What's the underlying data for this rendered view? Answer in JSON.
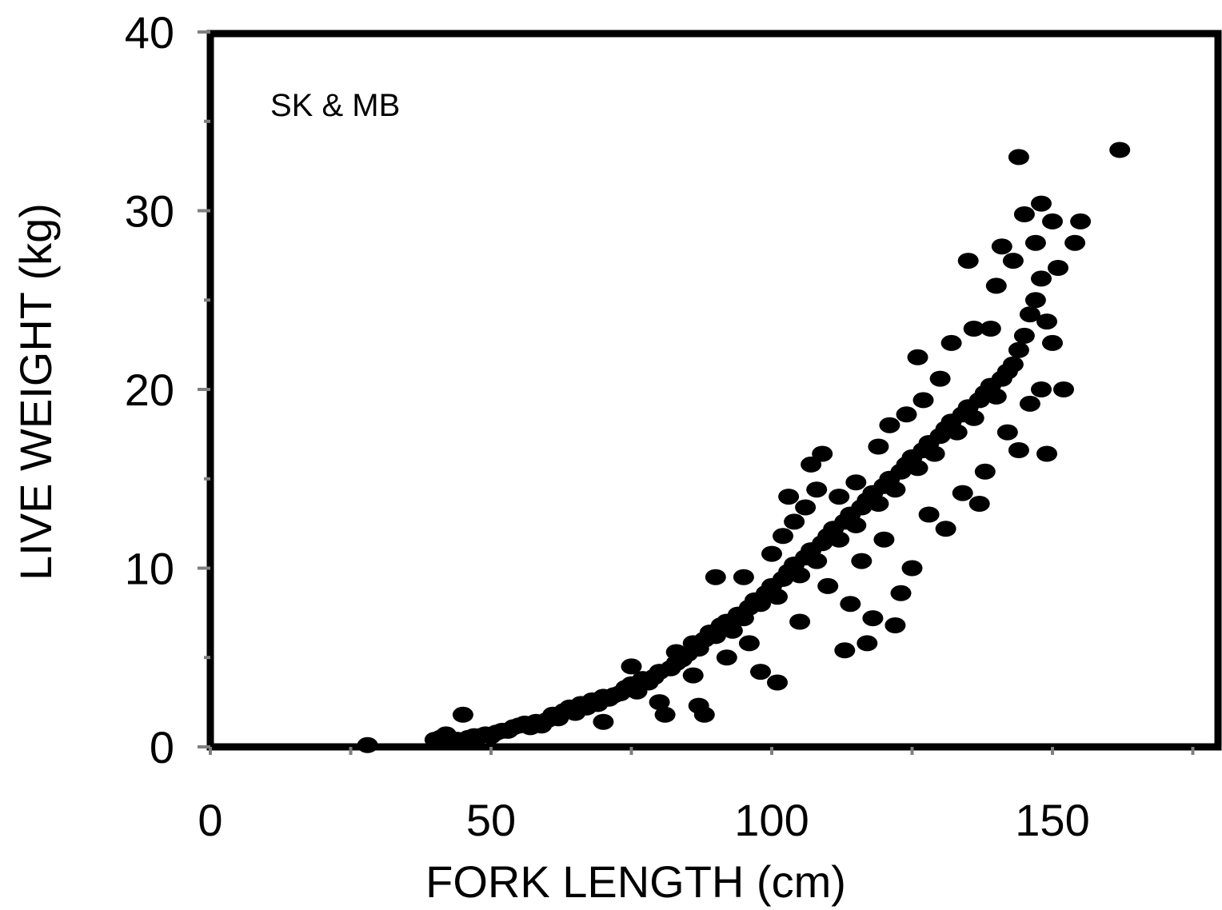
{
  "chart_data": {
    "type": "scatter",
    "title": "",
    "annotation": "SK & MB",
    "xlabel": "FORK LENGTH (cm)",
    "ylabel": "LIVE WEIGHT (kg)",
    "xlim": [
      0,
      180
    ],
    "ylim": [
      0,
      40
    ],
    "xticks": [
      0,
      50,
      100,
      150
    ],
    "xticks_minor": [
      25,
      75,
      125,
      175
    ],
    "yticks": [
      0,
      10,
      20,
      30,
      40
    ],
    "yticks_minor": [
      5,
      15,
      25,
      35
    ],
    "grid": false,
    "legend": "none",
    "marker_color": "#000000",
    "points": [
      [
        28,
        0.1
      ],
      [
        40,
        0.4
      ],
      [
        41,
        0.5
      ],
      [
        42,
        0.7
      ],
      [
        44,
        0.4
      ],
      [
        45,
        1.8
      ],
      [
        46,
        0.5
      ],
      [
        47,
        0.6
      ],
      [
        48,
        0.6
      ],
      [
        49,
        0.7
      ],
      [
        50,
        0.6
      ],
      [
        51,
        0.8
      ],
      [
        52,
        0.9
      ],
      [
        53,
        0.9
      ],
      [
        54,
        1.1
      ],
      [
        55,
        1.2
      ],
      [
        56,
        1.3
      ],
      [
        57,
        1.1
      ],
      [
        58,
        1.4
      ],
      [
        59,
        1.2
      ],
      [
        60,
        1.5
      ],
      [
        61,
        1.8
      ],
      [
        62,
        1.6
      ],
      [
        63,
        2.0
      ],
      [
        64,
        2.2
      ],
      [
        65,
        1.9
      ],
      [
        66,
        2.4
      ],
      [
        67,
        2.2
      ],
      [
        68,
        2.6
      ],
      [
        69,
        2.4
      ],
      [
        70,
        1.4
      ],
      [
        70,
        2.8
      ],
      [
        71,
        2.7
      ],
      [
        72,
        2.9
      ],
      [
        73,
        3.0
      ],
      [
        74,
        3.3
      ],
      [
        75,
        3.5
      ],
      [
        75,
        4.5
      ],
      [
        76,
        3.1
      ],
      [
        77,
        3.8
      ],
      [
        78,
        3.6
      ],
      [
        79,
        3.9
      ],
      [
        80,
        4.2
      ],
      [
        80,
        2.5
      ],
      [
        81,
        1.8
      ],
      [
        82,
        4.4
      ],
      [
        83,
        4.7
      ],
      [
        83,
        5.3
      ],
      [
        84,
        4.9
      ],
      [
        85,
        5.2
      ],
      [
        86,
        5.8
      ],
      [
        86,
        4.0
      ],
      [
        87,
        5.5
      ],
      [
        87,
        2.3
      ],
      [
        88,
        6.0
      ],
      [
        88,
        1.8
      ],
      [
        89,
        6.4
      ],
      [
        90,
        6.2
      ],
      [
        90,
        9.5
      ],
      [
        91,
        6.8
      ],
      [
        92,
        7.0
      ],
      [
        92,
        5.0
      ],
      [
        93,
        6.5
      ],
      [
        94,
        7.4
      ],
      [
        95,
        7.2
      ],
      [
        95,
        9.5
      ],
      [
        96,
        7.8
      ],
      [
        96,
        5.8
      ],
      [
        97,
        8.2
      ],
      [
        98,
        8.0
      ],
      [
        98,
        4.2
      ],
      [
        99,
        8.6
      ],
      [
        100,
        9.0
      ],
      [
        100,
        10.8
      ],
      [
        101,
        8.4
      ],
      [
        101,
        3.6
      ],
      [
        102,
        9.4
      ],
      [
        102,
        11.8
      ],
      [
        103,
        9.8
      ],
      [
        103,
        14.0
      ],
      [
        104,
        10.2
      ],
      [
        104,
        12.6
      ],
      [
        105,
        9.6
      ],
      [
        105,
        7.0
      ],
      [
        106,
        10.6
      ],
      [
        106,
        13.4
      ],
      [
        107,
        11.0
      ],
      [
        107,
        15.8
      ],
      [
        108,
        10.4
      ],
      [
        108,
        14.4
      ],
      [
        109,
        11.4
      ],
      [
        109,
        16.4
      ],
      [
        110,
        11.8
      ],
      [
        110,
        9.0
      ],
      [
        111,
        12.2
      ],
      [
        112,
        11.6
      ],
      [
        112,
        14.0
      ],
      [
        113,
        12.6
      ],
      [
        113,
        5.4
      ],
      [
        114,
        13.0
      ],
      [
        114,
        8.0
      ],
      [
        115,
        12.4
      ],
      [
        115,
        14.8
      ],
      [
        116,
        13.4
      ],
      [
        116,
        10.4
      ],
      [
        117,
        13.8
      ],
      [
        117,
        5.8
      ],
      [
        118,
        14.2
      ],
      [
        118,
        7.2
      ],
      [
        119,
        13.6
      ],
      [
        119,
        16.8
      ],
      [
        120,
        14.6
      ],
      [
        120,
        11.6
      ],
      [
        121,
        15.0
      ],
      [
        121,
        18.0
      ],
      [
        122,
        14.4
      ],
      [
        122,
        6.8
      ],
      [
        123,
        15.4
      ],
      [
        123,
        8.6
      ],
      [
        124,
        15.8
      ],
      [
        124,
        18.6
      ],
      [
        125,
        16.2
      ],
      [
        125,
        10.0
      ],
      [
        126,
        15.6
      ],
      [
        126,
        21.8
      ],
      [
        127,
        16.6
      ],
      [
        127,
        19.4
      ],
      [
        128,
        17.0
      ],
      [
        128,
        13.0
      ],
      [
        129,
        16.4
      ],
      [
        130,
        17.4
      ],
      [
        130,
        20.6
      ],
      [
        131,
        17.8
      ],
      [
        131,
        12.2
      ],
      [
        132,
        18.2
      ],
      [
        132,
        22.6
      ],
      [
        133,
        17.6
      ],
      [
        134,
        18.6
      ],
      [
        134,
        14.2
      ],
      [
        135,
        19.0
      ],
      [
        135,
        27.2
      ],
      [
        136,
        18.4
      ],
      [
        136,
        23.4
      ],
      [
        137,
        19.4
      ],
      [
        137,
        13.6
      ],
      [
        138,
        19.8
      ],
      [
        138,
        15.4
      ],
      [
        139,
        20.2
      ],
      [
        139,
        23.4
      ],
      [
        140,
        19.6
      ],
      [
        140,
        25.8
      ],
      [
        141,
        20.6
      ],
      [
        141,
        28.0
      ],
      [
        142,
        21.0
      ],
      [
        142,
        17.6
      ],
      [
        143,
        21.4
      ],
      [
        143,
        27.2
      ],
      [
        144,
        22.2
      ],
      [
        144,
        16.6
      ],
      [
        144,
        33.0
      ],
      [
        145,
        23.0
      ],
      [
        145,
        29.8
      ],
      [
        146,
        24.2
      ],
      [
        146,
        19.2
      ],
      [
        147,
        25.0
      ],
      [
        147,
        28.2
      ],
      [
        148,
        26.2
      ],
      [
        148,
        20.0
      ],
      [
        148,
        30.4
      ],
      [
        149,
        23.8
      ],
      [
        149,
        16.4
      ],
      [
        150,
        29.4
      ],
      [
        150,
        22.6
      ],
      [
        151,
        26.8
      ],
      [
        152,
        20.0
      ],
      [
        154,
        28.2
      ],
      [
        155,
        29.4
      ],
      [
        162,
        33.4
      ]
    ]
  }
}
